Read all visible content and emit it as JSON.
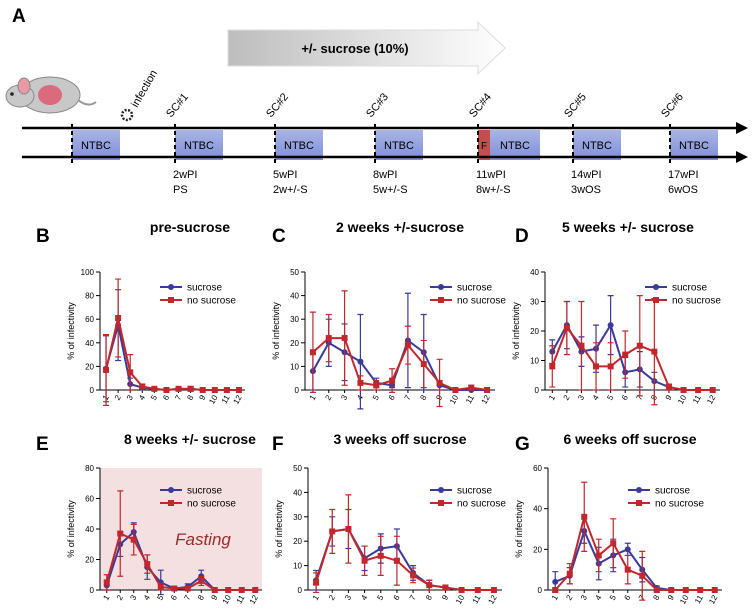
{
  "timeline": {
    "panel": "A",
    "treatment": "+/- sucrose (10%)",
    "infection": "infection",
    "ntbc": "NTBC",
    "fasting_mark": "F",
    "samples": [
      {
        "label": "SC#1",
        "week": "2wPI",
        "status": "PS"
      },
      {
        "label": "SC#2",
        "week": "5wPI",
        "status": "2w+/-S"
      },
      {
        "label": "SC#3",
        "week": "8wPI",
        "status": "5w+/-S"
      },
      {
        "label": "SC#4",
        "week": "11wPI",
        "status": "8w+/-S"
      },
      {
        "label": "SC#5",
        "week": "14wPI",
        "status": "3wOS"
      },
      {
        "label": "SC#6",
        "week": "17wPI",
        "status": "6wOS"
      }
    ]
  },
  "chart_data": [
    {
      "type": "line",
      "panel": "B",
      "title": "pre-sucrose",
      "y_label": "% of infectivity",
      "categories": [
        "1",
        "2",
        "3",
        "4",
        "5",
        "6",
        "7",
        "8",
        "9",
        "10",
        "11",
        "12"
      ],
      "ylim": [
        0,
        100
      ],
      "yticks": [
        0,
        20,
        40,
        60,
        80,
        100
      ],
      "series": [
        {
          "name": "sucrose",
          "color": "#3a3a9a",
          "marker": "circle",
          "values": [
            18,
            55,
            5,
            2,
            1,
            0,
            1,
            1,
            0,
            0,
            0,
            0
          ],
          "errors": [
            28,
            30,
            5,
            1,
            1,
            0,
            1,
            2,
            0,
            0,
            0,
            0
          ]
        },
        {
          "name": "no sucrose",
          "color": "#c1272d",
          "marker": "square",
          "values": [
            17,
            61,
            15,
            3,
            1,
            0,
            1,
            1,
            0,
            0,
            0,
            0
          ],
          "errors": [
            30,
            33,
            15,
            2,
            1,
            0,
            1,
            1,
            0,
            0,
            0,
            0
          ]
        }
      ]
    },
    {
      "type": "line",
      "panel": "C",
      "title": "2 weeks +/-sucrose",
      "y_label": "% of infectivity",
      "categories": [
        "1",
        "2",
        "3",
        "4",
        "5",
        "6",
        "7",
        "8",
        "9",
        "10",
        "11",
        "12"
      ],
      "ylim": [
        0,
        50
      ],
      "yticks": [
        0,
        10,
        20,
        30,
        40,
        50
      ],
      "series": [
        {
          "name": "sucrose",
          "color": "#3a3a9a",
          "marker": "circle",
          "values": [
            8,
            20,
            16,
            12,
            3,
            2,
            21,
            16,
            2,
            0,
            0,
            0
          ],
          "errors": [
            8,
            10,
            12,
            20,
            2,
            1,
            20,
            16,
            2,
            0,
            0,
            0
          ]
        },
        {
          "name": "no sucrose",
          "color": "#c1272d",
          "marker": "square",
          "values": [
            16,
            22,
            22,
            3,
            2,
            4,
            19,
            11,
            3,
            0,
            1,
            0
          ],
          "errors": [
            17,
            10,
            20,
            3,
            2,
            5,
            8,
            10,
            10,
            0,
            1,
            0
          ]
        }
      ]
    },
    {
      "type": "line",
      "panel": "D",
      "title": "5 weeks +/- sucrose",
      "y_label": "% of infectivity",
      "categories": [
        "1",
        "2",
        "3",
        "4",
        "5",
        "6",
        "7",
        "8",
        "9",
        "10",
        "11",
        "12"
      ],
      "ylim": [
        0,
        40
      ],
      "yticks": [
        0,
        10,
        20,
        30,
        40
      ],
      "series": [
        {
          "name": "sucrose",
          "color": "#3a3a9a",
          "marker": "circle",
          "values": [
            13,
            22,
            13,
            14,
            22,
            6,
            7,
            3,
            1,
            0,
            0,
            0
          ],
          "errors": [
            4,
            8,
            5,
            8,
            10,
            5,
            6,
            3,
            1,
            0,
            0,
            0
          ]
        },
        {
          "name": "no sucrose",
          "color": "#c1272d",
          "marker": "square",
          "values": [
            8,
            21,
            15,
            8,
            8,
            12,
            15,
            13,
            1,
            0,
            0,
            0
          ],
          "errors": [
            7,
            9,
            15,
            8,
            8,
            8,
            17,
            18,
            1,
            0,
            0,
            0
          ]
        }
      ]
    },
    {
      "type": "line",
      "panel": "E",
      "title": "8 weeks +/- sucrose",
      "y_label": "% of infectivity",
      "annotation": "Fasting",
      "shade_color": "#f4e0e0",
      "categories": [
        "1",
        "2",
        "3",
        "4",
        "5",
        "6",
        "7",
        "8",
        "9",
        "10",
        "11",
        "12"
      ],
      "ylim": [
        0,
        80
      ],
      "yticks": [
        0,
        20,
        40,
        60,
        80
      ],
      "series": [
        {
          "name": "sucrose",
          "color": "#3a3a9a",
          "marker": "circle",
          "values": [
            3,
            30,
            38,
            15,
            5,
            1,
            2,
            9,
            0,
            0,
            0,
            0
          ],
          "errors": [
            3,
            8,
            6,
            8,
            8,
            1,
            2,
            4,
            0,
            0,
            0,
            0
          ]
        },
        {
          "name": "no sucrose",
          "color": "#c1272d",
          "marker": "square",
          "values": [
            5,
            37,
            33,
            17,
            2,
            1,
            1,
            6,
            0,
            0,
            0,
            0
          ],
          "errors": [
            5,
            28,
            10,
            6,
            2,
            1,
            1,
            3,
            0,
            0,
            0,
            0
          ]
        }
      ]
    },
    {
      "type": "line",
      "panel": "F",
      "title": "3 weeks off sucrose",
      "y_label": "% of infectivity",
      "categories": [
        "1",
        "2",
        "3",
        "4",
        "5",
        "6",
        "7",
        "8",
        "9",
        "10",
        "11",
        "12"
      ],
      "ylim": [
        0,
        50
      ],
      "yticks": [
        0,
        10,
        20,
        30,
        40,
        50
      ],
      "series": [
        {
          "name": "sucrose",
          "color": "#3a3a9a",
          "marker": "circle",
          "values": [
            4,
            24,
            25,
            13,
            17,
            18,
            7,
            2,
            1,
            0,
            0,
            0
          ],
          "errors": [
            4,
            6,
            8,
            5,
            6,
            7,
            3,
            2,
            1,
            0,
            0,
            0
          ]
        },
        {
          "name": "no sucrose",
          "color": "#c1272d",
          "marker": "square",
          "values": [
            3,
            24,
            25,
            12,
            14,
            12,
            6,
            2,
            1,
            0,
            0,
            0
          ],
          "errors": [
            4,
            9,
            14,
            6,
            8,
            10,
            3,
            2,
            1,
            0,
            0,
            0
          ]
        }
      ]
    },
    {
      "type": "line",
      "panel": "G",
      "title": "6 weeks off sucrose",
      "y_label": "% of infectivity",
      "categories": [
        "1",
        "2",
        "3",
        "4",
        "5",
        "6",
        "7",
        "8",
        "9",
        "10",
        "11",
        "12"
      ],
      "ylim": [
        0,
        60
      ],
      "yticks": [
        0,
        20,
        40,
        60
      ],
      "series": [
        {
          "name": "sucrose",
          "color": "#3a3a9a",
          "marker": "circle",
          "values": [
            4,
            7,
            29,
            13,
            17,
            20,
            10,
            1,
            0,
            0,
            0,
            0
          ],
          "errors": [
            5,
            4,
            6,
            8,
            8,
            3,
            6,
            1,
            0,
            0,
            0,
            0
          ]
        },
        {
          "name": "no sucrose",
          "color": "#c1272d",
          "marker": "square",
          "values": [
            0,
            8,
            36,
            17,
            23,
            10,
            7,
            0,
            0,
            0,
            0,
            0
          ],
          "errors": [
            1,
            5,
            17,
            8,
            12,
            7,
            12,
            1,
            0,
            0,
            0,
            0
          ]
        }
      ]
    }
  ]
}
